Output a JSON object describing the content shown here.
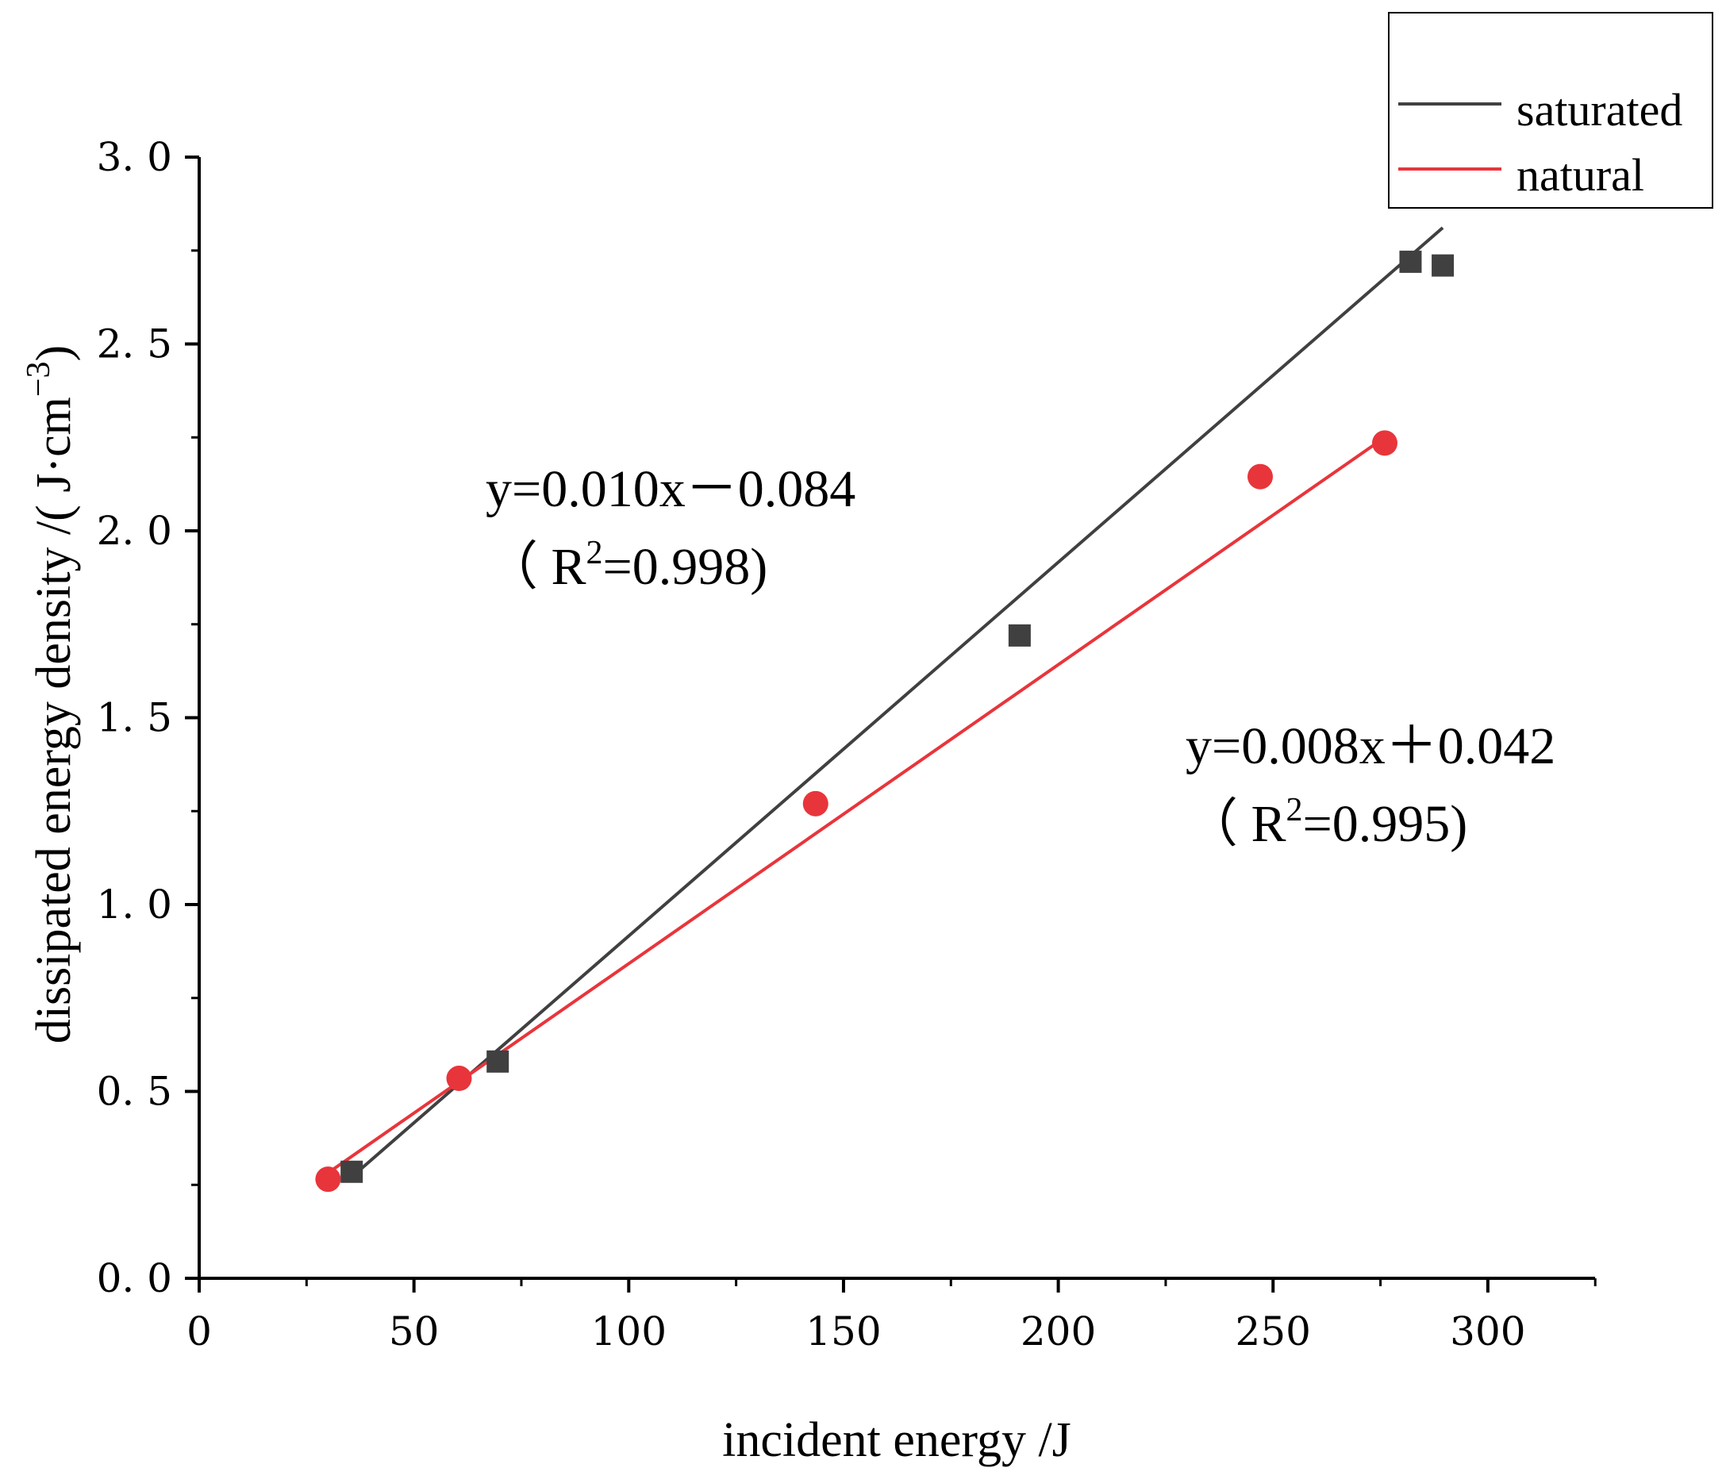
{
  "chart_data": {
    "type": "scatter",
    "xlabel": "incident energy  /J",
    "ylabel_main": "dissipated energy density /(  J·cm",
    "ylabel_sup": "−3",
    "ylabel_close": ")",
    "xlim": [
      0,
      325
    ],
    "ylim": [
      0,
      3.0
    ],
    "x_ticks": [
      0,
      50,
      100,
      150,
      200,
      250,
      300
    ],
    "x_tick_labels": [
      "0",
      "50",
      "100",
      "150",
      "200",
      "250",
      "300"
    ],
    "x_minor_ticks": [
      25,
      75,
      125,
      175,
      225,
      275,
      325
    ],
    "y_ticks": [
      0,
      0.5,
      1.0,
      1.5,
      2.0,
      2.5,
      3.0
    ],
    "y_tick_labels": [
      "0. 0",
      "0. 5",
      "1. 0",
      "1. 5",
      "2. 0",
      "2. 5",
      "3. 0"
    ],
    "y_minor_ticks": [
      0.25,
      0.75,
      1.25,
      1.75,
      2.25,
      2.75
    ],
    "series": [
      {
        "name": "saturated",
        "marker": "square",
        "color": "#404040",
        "x": [
          35.5,
          69.5,
          191,
          282,
          289.5
        ],
        "y": [
          0.285,
          0.58,
          1.72,
          2.72,
          2.71
        ],
        "fit": {
          "slope": 0.01,
          "intercept": -0.084,
          "x_range": [
            35.5,
            289.5
          ]
        }
      },
      {
        "name": "natural",
        "marker": "circle",
        "color": "#e8353b",
        "x": [
          30,
          60.5,
          143.5,
          247,
          276
        ],
        "y": [
          0.265,
          0.535,
          1.27,
          2.145,
          2.235
        ],
        "fit": {
          "slope": 0.008,
          "intercept": 0.042,
          "x_range": [
            30,
            276
          ]
        }
      }
    ],
    "annotations": [
      {
        "line1": "y=0.010x－0.084",
        "line2_open": "（ R",
        "line2_sup": "2",
        "line2_close": "=0.998)"
      },
      {
        "line1": "y=0.008x＋0.042",
        "line2_open": "（ R",
        "line2_sup": "2",
        "line2_close": "=0.995)"
      }
    ],
    "legend": {
      "position": "top-right",
      "entries": [
        {
          "label": "saturated",
          "color": "#404040"
        },
        {
          "label": "natural",
          "color": "#e8353b"
        }
      ]
    }
  }
}
